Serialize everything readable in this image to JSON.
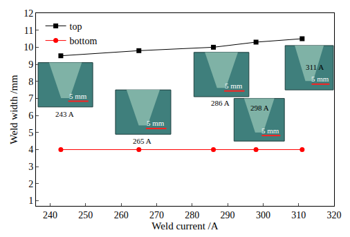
{
  "chart_data": {
    "type": "line",
    "x_label": "Weld current /A",
    "y_label": "Weld width /mm",
    "x": [
      243,
      265,
      286,
      298,
      311
    ],
    "series": [
      {
        "name": "top",
        "color": "#000000",
        "marker": "square",
        "values": [
          9.5,
          9.8,
          10.0,
          10.3,
          10.5
        ]
      },
      {
        "name": "bottom",
        "color": "#ff0000",
        "marker": "circle",
        "values": [
          4.0,
          4.0,
          4.0,
          4.0,
          4.0
        ]
      }
    ],
    "xlim": [
      236,
      320
    ],
    "xticks": [
      240,
      250,
      260,
      270,
      280,
      290,
      300,
      310,
      320
    ],
    "ylim": [
      0.7,
      12
    ],
    "yticks": [
      1,
      2,
      3,
      4,
      5,
      6,
      7,
      8,
      9,
      10,
      11,
      12
    ],
    "grid": false,
    "legend": "upper left",
    "annotations": [
      {
        "text": "243 A",
        "scale_bar": "5 mm"
      },
      {
        "text": "265 A",
        "scale_bar": "5 mm"
      },
      {
        "text": "286 A",
        "scale_bar": "5 mm"
      },
      {
        "text": "298 A",
        "scale_bar": "5 mm"
      },
      {
        "text": "311 A",
        "scale_bar": "5 mm"
      }
    ]
  }
}
